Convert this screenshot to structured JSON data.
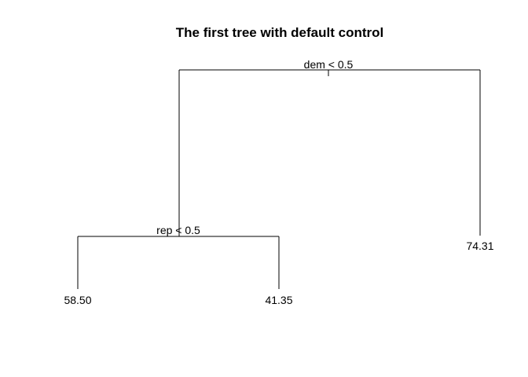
{
  "title": "The first tree with default control",
  "tree": {
    "splits": [
      {
        "id": "root",
        "label": "dem < 0.5"
      },
      {
        "id": "left",
        "label": "rep < 0.5"
      }
    ],
    "leaves": [
      {
        "id": "ll",
        "value": "58.50"
      },
      {
        "id": "lr",
        "value": "41.35"
      },
      {
        "id": "r",
        "value": "74.31"
      }
    ]
  }
}
